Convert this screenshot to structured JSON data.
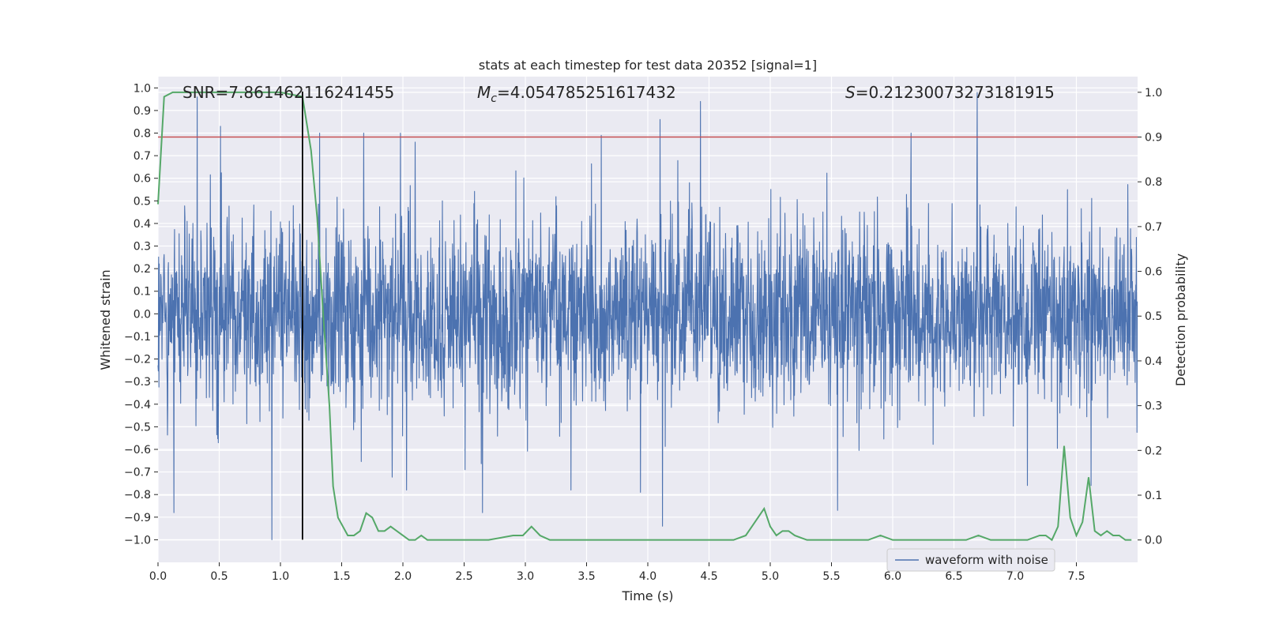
{
  "chart_data": {
    "type": "line",
    "title": "stats at each timestep for test data 20352 [signal=1]",
    "xlabel": "Time (s)",
    "ylabel_left": "Whitened strain",
    "ylabel_right": "Detection probability",
    "xlim": [
      0,
      8
    ],
    "ylim_left": [
      -1.1,
      1.05
    ],
    "ylim_right": [
      -0.05,
      1.035
    ],
    "x_ticks": [
      0.0,
      0.5,
      1.0,
      1.5,
      2.0,
      2.5,
      3.0,
      3.5,
      4.0,
      4.5,
      5.0,
      5.5,
      6.0,
      6.5,
      7.0,
      7.5
    ],
    "x_tick_labels": [
      "0.0",
      "0.5",
      "1.0",
      "1.5",
      "2.0",
      "2.5",
      "3.0",
      "3.5",
      "4.0",
      "4.5",
      "5.0",
      "5.5",
      "6.0",
      "6.5",
      "7.0",
      "7.5"
    ],
    "y_left_ticks": [
      1.0,
      0.9,
      0.8,
      0.7,
      0.6,
      0.5,
      0.4,
      0.3,
      0.2,
      0.1,
      0.0,
      -0.1,
      -0.2,
      -0.3,
      -0.4,
      -0.5,
      -0.6,
      -0.7,
      -0.8,
      -0.9,
      -1.0
    ],
    "y_left_tick_labels": [
      "1.0",
      "0.9",
      "0.8",
      "0.7",
      "0.6",
      "0.5",
      "0.4",
      "0.3",
      "0.2",
      "0.1",
      "0.0",
      "−0.1",
      "−0.2",
      "−0.3",
      "−0.4",
      "−0.5",
      "−0.6",
      "−0.7",
      "−0.8",
      "−0.9",
      "−1.0"
    ],
    "y_right_ticks": [
      1.0,
      0.9,
      0.8,
      0.7,
      0.6,
      0.5,
      0.4,
      0.3,
      0.2,
      0.1,
      0.0
    ],
    "y_right_tick_labels": [
      "1.0",
      "0.9",
      "0.8",
      "0.7",
      "0.6",
      "0.5",
      "0.4",
      "0.3",
      "0.2",
      "0.1",
      "0.0"
    ],
    "grid": true,
    "legend": {
      "position": "bottom-right",
      "entries": [
        "waveform with noise"
      ]
    },
    "annotations": {
      "snr": {
        "label": "SNR=",
        "value": "7.861462116241455"
      },
      "mc": {
        "label_base": "M",
        "label_sub": "c",
        "suffix": "=",
        "value": "4.054785251617432"
      },
      "s": {
        "label": "S",
        "suffix": "=",
        "value": "0.21230073273181915"
      }
    },
    "threshold_line": {
      "axis": "right",
      "y": 0.9,
      "color": "#c44e52"
    },
    "vertical_marker": {
      "x": 1.18,
      "color": "#000000"
    },
    "series": [
      {
        "name": "waveform with noise",
        "axis": "left",
        "color": "#4c72b0",
        "kind": "dense-noise",
        "sample_rate_hz": 400,
        "noise_sigma": 0.2,
        "spikes": [
          [
            0.32,
            0.96
          ],
          [
            0.51,
            0.83
          ],
          [
            1.32,
            0.8
          ],
          [
            1.68,
            0.8
          ],
          [
            1.98,
            0.8
          ],
          [
            2.1,
            0.76
          ],
          [
            3.62,
            0.79
          ],
          [
            4.1,
            0.86
          ],
          [
            4.43,
            0.94
          ],
          [
            6.15,
            0.8
          ],
          [
            6.69,
            0.98
          ],
          [
            0.93,
            -1.0
          ],
          [
            0.13,
            -0.88
          ],
          [
            2.65,
            -0.88
          ],
          [
            4.12,
            -0.94
          ],
          [
            5.55,
            -0.87
          ],
          [
            3.94,
            -0.79
          ],
          [
            7.1,
            -0.76
          ],
          [
            7.62,
            -0.76
          ],
          [
            2.03,
            -0.78
          ]
        ]
      },
      {
        "name": "detection probability",
        "axis": "right",
        "color": "#55a868",
        "x": [
          0.0,
          0.05,
          0.12,
          0.2,
          0.4,
          0.6,
          0.8,
          1.0,
          1.18,
          1.25,
          1.3,
          1.35,
          1.4,
          1.43,
          1.47,
          1.55,
          1.6,
          1.65,
          1.7,
          1.75,
          1.8,
          1.85,
          1.9,
          1.95,
          2.0,
          2.05,
          2.1,
          2.15,
          2.2,
          2.3,
          2.5,
          2.7,
          2.9,
          2.98,
          3.05,
          3.12,
          3.2,
          3.4,
          3.6,
          3.8,
          4.0,
          4.1,
          4.2,
          4.4,
          4.5,
          4.6,
          4.7,
          4.8,
          4.85,
          4.9,
          4.95,
          5.0,
          5.05,
          5.1,
          5.15,
          5.2,
          5.3,
          5.4,
          5.5,
          5.6,
          5.7,
          5.8,
          5.9,
          6.0,
          6.1,
          6.2,
          6.3,
          6.4,
          6.5,
          6.6,
          6.7,
          6.8,
          6.9,
          7.0,
          7.1,
          7.2,
          7.25,
          7.3,
          7.35,
          7.4,
          7.45,
          7.5,
          7.55,
          7.6,
          7.65,
          7.7,
          7.75,
          7.8,
          7.85,
          7.9,
          7.95
        ],
        "y": [
          0.75,
          0.99,
          1.0,
          1.0,
          1.0,
          1.0,
          1.0,
          1.0,
          0.99,
          0.87,
          0.72,
          0.5,
          0.3,
          0.12,
          0.05,
          0.01,
          0.01,
          0.02,
          0.06,
          0.05,
          0.02,
          0.02,
          0.03,
          0.02,
          0.01,
          0.0,
          0.0,
          0.01,
          0.0,
          0.0,
          0.0,
          0.0,
          0.01,
          0.01,
          0.03,
          0.01,
          0.0,
          0.0,
          0.0,
          0.0,
          0.0,
          0.0,
          0.0,
          0.0,
          0.0,
          0.0,
          0.0,
          0.01,
          0.03,
          0.05,
          0.07,
          0.03,
          0.01,
          0.02,
          0.02,
          0.01,
          0.0,
          0.0,
          0.0,
          0.0,
          0.0,
          0.0,
          0.01,
          0.0,
          0.0,
          0.0,
          0.0,
          0.0,
          0.0,
          0.0,
          0.01,
          0.0,
          0.0,
          0.0,
          0.0,
          0.01,
          0.01,
          0.0,
          0.03,
          0.21,
          0.05,
          0.01,
          0.04,
          0.14,
          0.02,
          0.01,
          0.02,
          0.01,
          0.01,
          0.0,
          0.0
        ]
      }
    ]
  }
}
